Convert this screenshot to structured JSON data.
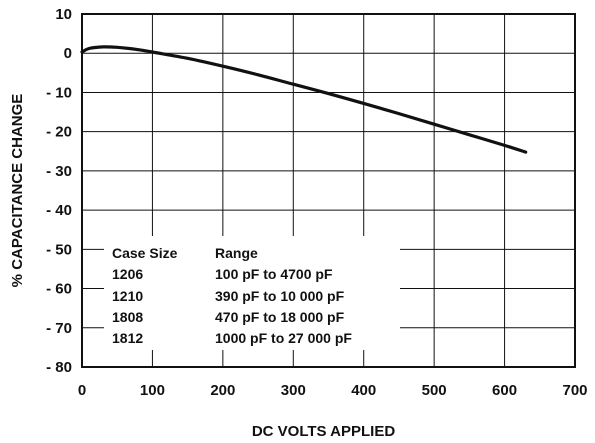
{
  "chart_data": {
    "type": "line",
    "xlabel": "DC VOLTS APPLIED",
    "ylabel": "% CAPACITANCE CHANGE",
    "xlim": [
      0,
      700
    ],
    "ylim": [
      -80,
      10
    ],
    "x_ticks": [
      0,
      100,
      200,
      300,
      400,
      500,
      600,
      700
    ],
    "y_ticks": [
      10,
      0,
      -10,
      -20,
      -30,
      -40,
      -50,
      -60,
      -70,
      -80
    ],
    "x_tick_labels": [
      "0",
      "100",
      "200",
      "300",
      "400",
      "500",
      "600",
      "700"
    ],
    "y_tick_labels": [
      "10",
      "0",
      "- 10",
      "- 20",
      "- 30",
      "- 40",
      "- 50",
      "- 60",
      "- 70",
      "- 80"
    ],
    "grid": true,
    "series": [
      {
        "x": [
          0,
          10,
          30,
          50,
          80,
          100,
          150,
          200,
          250,
          300,
          350,
          400,
          450,
          500,
          550,
          600,
          630
        ],
        "y": [
          0.3,
          1.2,
          1.6,
          1.5,
          0.9,
          0.3,
          -1.3,
          -3.3,
          -5.5,
          -7.9,
          -10.3,
          -12.8,
          -15.4,
          -18.1,
          -20.8,
          -23.5,
          -25.2
        ]
      }
    ],
    "table": {
      "headers": [
        "Case Size",
        "Range"
      ],
      "rows": [
        [
          "1206",
          "100 pF to 4700 pF"
        ],
        [
          "1210",
          "390 pF to 10 000 pF"
        ],
        [
          "1808",
          "470 pF to 18 000 pF"
        ],
        [
          "1812",
          "1000 pF to 27 000 pF"
        ]
      ]
    }
  }
}
